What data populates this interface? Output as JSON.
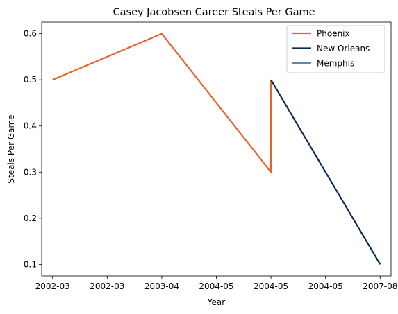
{
  "chart_data": {
    "type": "line",
    "title": "Casey Jacobsen Career Steals Per Game",
    "xlabel": "Year",
    "ylabel": "Steals Per Game",
    "x_tick_labels": [
      "2002-03",
      "2002-03",
      "2003-04",
      "2004-05",
      "2004-05",
      "2004-05",
      "2007-08"
    ],
    "x_ticks": [
      0,
      1,
      2,
      3,
      4,
      5,
      6
    ],
    "xlim": [
      -0.2,
      6.2
    ],
    "y_ticks": [
      0.1,
      0.2,
      0.3,
      0.4,
      0.5,
      0.6
    ],
    "y_tick_labels": [
      "0.1",
      "0.2",
      "0.3",
      "0.4",
      "0.5",
      "0.6"
    ],
    "ylim": [
      0.075,
      0.625
    ],
    "grid": false,
    "legend_position": "top-right",
    "series": [
      {
        "name": "Phoenix",
        "color": "#e5632a",
        "x": [
          0,
          2,
          4,
          4
        ],
        "y": [
          0.5,
          0.6,
          0.3,
          0.5
        ]
      },
      {
        "name": "New Orleans",
        "color": "#0b2b55",
        "x": [
          4,
          6
        ],
        "y": [
          0.5,
          0.1
        ]
      },
      {
        "name": "Memphis",
        "color": "#5d87b5",
        "x": [],
        "y": []
      }
    ]
  }
}
